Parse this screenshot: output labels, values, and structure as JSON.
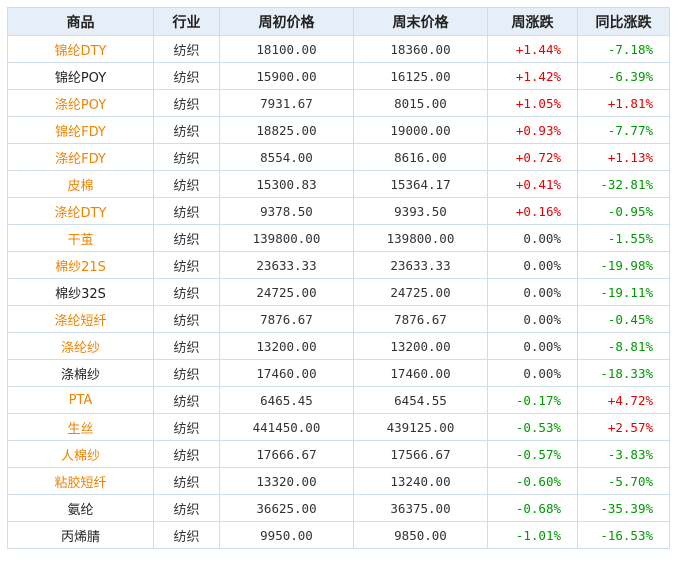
{
  "headers": [
    "商品",
    "行业",
    "周初价格",
    "周末价格",
    "周涨跌",
    "同比涨跌"
  ],
  "colors": {
    "link": "#f08300",
    "up": "#e60000",
    "down": "#009900",
    "header_bg": "#e6eef8",
    "border": "#cfdcec"
  },
  "rows": [
    {
      "name": "锦纶DTY",
      "link": true,
      "industry": "纺织",
      "start": "18100.00",
      "end": "18360.00",
      "week": "+1.44%",
      "week_dir": "up",
      "yoy": "-7.18%",
      "yoy_dir": "down"
    },
    {
      "name": "锦纶POY",
      "link": false,
      "industry": "纺织",
      "start": "15900.00",
      "end": "16125.00",
      "week": "+1.42%",
      "week_dir": "up",
      "yoy": "-6.39%",
      "yoy_dir": "down"
    },
    {
      "name": "涤纶POY",
      "link": true,
      "industry": "纺织",
      "start": "7931.67",
      "end": "8015.00",
      "week": "+1.05%",
      "week_dir": "up",
      "yoy": "+1.81%",
      "yoy_dir": "up"
    },
    {
      "name": "锦纶FDY",
      "link": true,
      "industry": "纺织",
      "start": "18825.00",
      "end": "19000.00",
      "week": "+0.93%",
      "week_dir": "up",
      "yoy": "-7.77%",
      "yoy_dir": "down"
    },
    {
      "name": "涤纶FDY",
      "link": true,
      "industry": "纺织",
      "start": "8554.00",
      "end": "8616.00",
      "week": "+0.72%",
      "week_dir": "up",
      "yoy": "+1.13%",
      "yoy_dir": "up"
    },
    {
      "name": "皮棉",
      "link": true,
      "industry": "纺织",
      "start": "15300.83",
      "end": "15364.17",
      "week": "+0.41%",
      "week_dir": "up",
      "yoy": "-32.81%",
      "yoy_dir": "down"
    },
    {
      "name": "涤纶DTY",
      "link": true,
      "industry": "纺织",
      "start": "9378.50",
      "end": "9393.50",
      "week": "+0.16%",
      "week_dir": "up",
      "yoy": "-0.95%",
      "yoy_dir": "down"
    },
    {
      "name": "干茧",
      "link": true,
      "industry": "纺织",
      "start": "139800.00",
      "end": "139800.00",
      "week": "0.00%",
      "week_dir": "flat",
      "yoy": "-1.55%",
      "yoy_dir": "down"
    },
    {
      "name": "棉纱21S",
      "link": true,
      "industry": "纺织",
      "start": "23633.33",
      "end": "23633.33",
      "week": "0.00%",
      "week_dir": "flat",
      "yoy": "-19.98%",
      "yoy_dir": "down"
    },
    {
      "name": "棉纱32S",
      "link": false,
      "industry": "纺织",
      "start": "24725.00",
      "end": "24725.00",
      "week": "0.00%",
      "week_dir": "flat",
      "yoy": "-19.11%",
      "yoy_dir": "down"
    },
    {
      "name": "涤纶短纤",
      "link": true,
      "industry": "纺织",
      "start": "7876.67",
      "end": "7876.67",
      "week": "0.00%",
      "week_dir": "flat",
      "yoy": "-0.45%",
      "yoy_dir": "down"
    },
    {
      "name": "涤纶纱",
      "link": true,
      "industry": "纺织",
      "start": "13200.00",
      "end": "13200.00",
      "week": "0.00%",
      "week_dir": "flat",
      "yoy": "-8.81%",
      "yoy_dir": "down"
    },
    {
      "name": "涤棉纱",
      "link": false,
      "industry": "纺织",
      "start": "17460.00",
      "end": "17460.00",
      "week": "0.00%",
      "week_dir": "flat",
      "yoy": "-18.33%",
      "yoy_dir": "down"
    },
    {
      "name": "PTA",
      "link": true,
      "industry": "纺织",
      "start": "6465.45",
      "end": "6454.55",
      "week": "-0.17%",
      "week_dir": "down",
      "yoy": "+4.72%",
      "yoy_dir": "up"
    },
    {
      "name": "生丝",
      "link": true,
      "industry": "纺织",
      "start": "441450.00",
      "end": "439125.00",
      "week": "-0.53%",
      "week_dir": "down",
      "yoy": "+2.57%",
      "yoy_dir": "up"
    },
    {
      "name": "人棉纱",
      "link": true,
      "industry": "纺织",
      "start": "17666.67",
      "end": "17566.67",
      "week": "-0.57%",
      "week_dir": "down",
      "yoy": "-3.83%",
      "yoy_dir": "down"
    },
    {
      "name": "粘胶短纤",
      "link": true,
      "industry": "纺织",
      "start": "13320.00",
      "end": "13240.00",
      "week": "-0.60%",
      "week_dir": "down",
      "yoy": "-5.70%",
      "yoy_dir": "down"
    },
    {
      "name": "氨纶",
      "link": false,
      "industry": "纺织",
      "start": "36625.00",
      "end": "36375.00",
      "week": "-0.68%",
      "week_dir": "down",
      "yoy": "-35.39%",
      "yoy_dir": "down"
    },
    {
      "name": "丙烯腈",
      "link": false,
      "industry": "纺织",
      "start": "9950.00",
      "end": "9850.00",
      "week": "-1.01%",
      "week_dir": "down",
      "yoy": "-16.53%",
      "yoy_dir": "down"
    }
  ]
}
